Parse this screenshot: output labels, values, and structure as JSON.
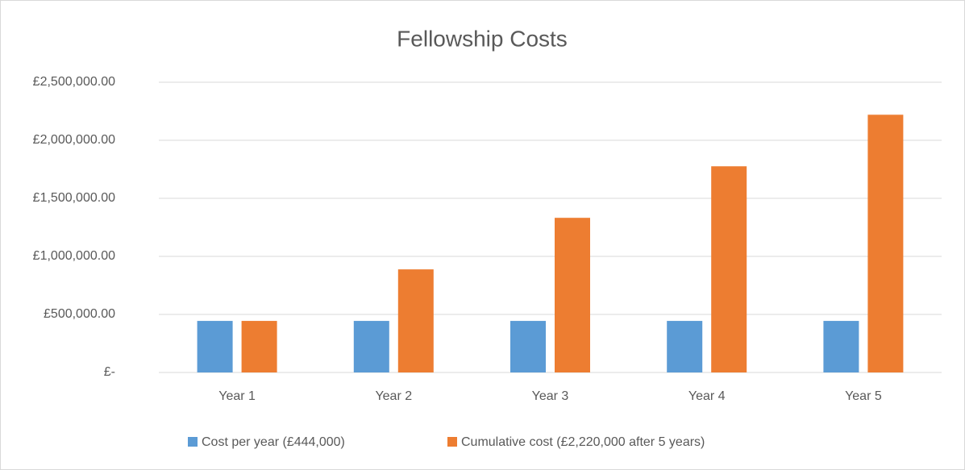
{
  "chart_data": {
    "type": "bar",
    "title": "Fellowship Costs",
    "categories": [
      "Year 1",
      "Year 2",
      "Year 3",
      "Year 4",
      "Year 5"
    ],
    "series": [
      {
        "name": "Cost per year (£444,000)",
        "color": "#5b9bd5",
        "values": [
          444000,
          444000,
          444000,
          444000,
          444000
        ]
      },
      {
        "name": "Cumulative cost (£2,220,000 after 5 years)",
        "color": "#ed7d31",
        "values": [
          444000,
          888000,
          1332000,
          1776000,
          2220000
        ]
      }
    ],
    "ylim": [
      0,
      2500000
    ],
    "yticks": [
      {
        "value": 0,
        "label": "£-"
      },
      {
        "value": 500000,
        "label": "£500,000.00"
      },
      {
        "value": 1000000,
        "label": "£1,000,000.00"
      },
      {
        "value": 1500000,
        "label": "£1,500,000.00"
      },
      {
        "value": 2000000,
        "label": "£2,000,000.00"
      },
      {
        "value": 2500000,
        "label": "£2,500,000.00"
      }
    ],
    "grid": true,
    "legend": "bottom"
  }
}
